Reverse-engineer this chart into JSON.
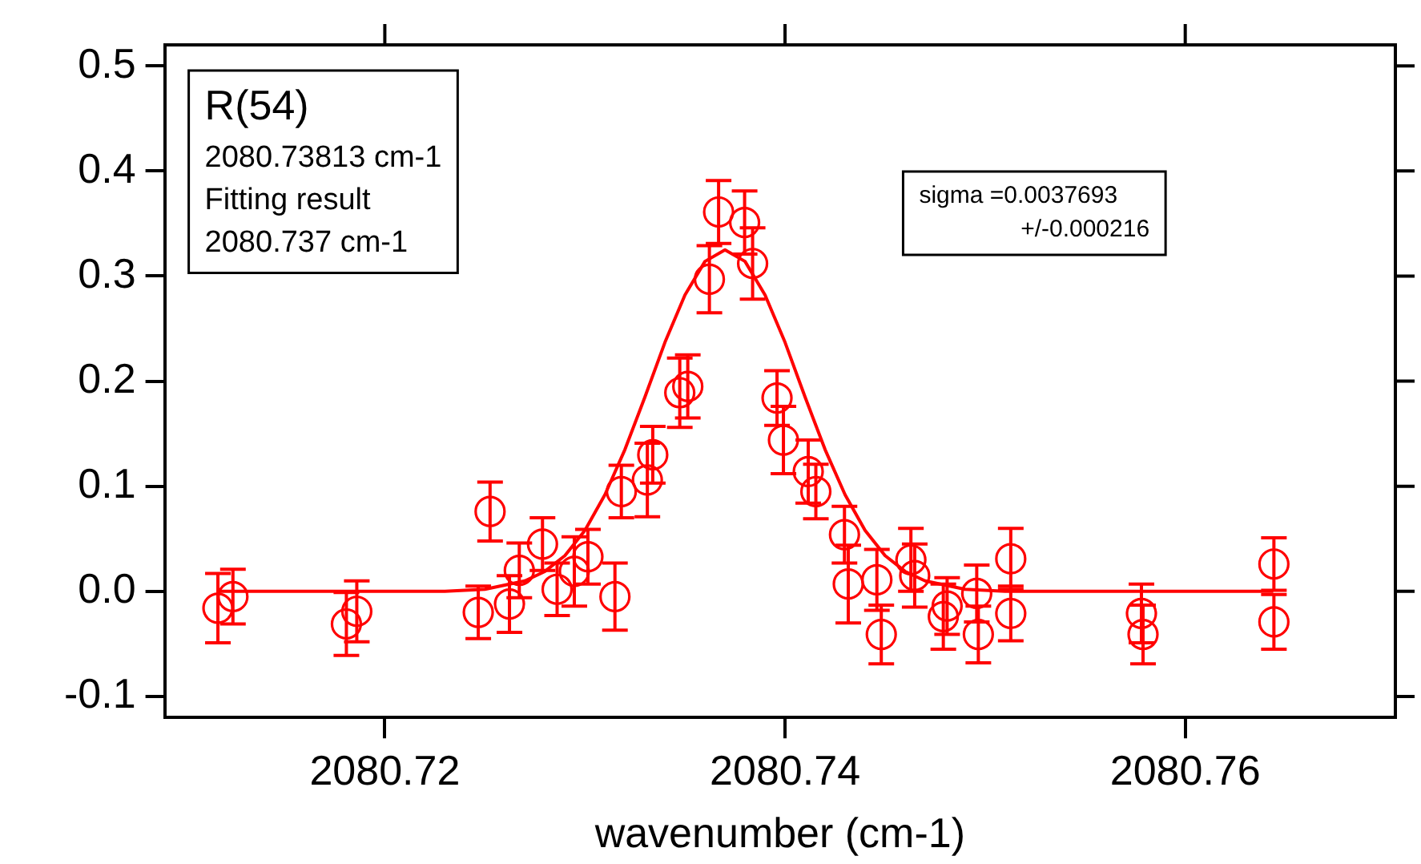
{
  "chart_data": {
    "type": "scatter",
    "xlabel": "wavenumber (cm-1)",
    "xlim": [
      2080.709,
      2080.7705
    ],
    "xticks": [
      2080.72,
      2080.74,
      2080.76
    ],
    "ylim": [
      -0.12,
      0.52
    ],
    "yticks": [
      {
        "value": -0.1,
        "label": "-0.1"
      },
      {
        "value": 0,
        "label": "0.0"
      },
      0.1,
      0.2,
      0.3,
      0.4,
      0.5
    ],
    "grid": false,
    "legend": false,
    "marker": "circle",
    "annotations": [
      "R(54)\n2080.73813 cm-1\nFitting result\n2080.737 cm-1",
      "sigma =0.0037693\n+/-0.000216"
    ],
    "series": [
      {
        "color": "#ff0000",
        "x": [
          2080.71166,
          2080.71241,
          2080.71808,
          2080.7186,
          2080.72467,
          2080.72526,
          2080.72623,
          2080.72672,
          2080.72788,
          2080.72861,
          2080.72947,
          2080.73015,
          2080.7315,
          2080.73182,
          2080.73312,
          2080.73339,
          2080.73474,
          2080.73514,
          2080.73622,
          2080.73668,
          2080.73798,
          2080.73838,
          2080.7396,
          2080.73992,
          2080.74116,
          2080.74154,
          2080.74297,
          2080.74316,
          2080.74459,
          2080.74481,
          2080.74629,
          2080.74648,
          2080.74791,
          2080.7481,
          2080.74958,
          2080.74966,
          2080.75128,
          2080.75128,
          2080.75781,
          2080.75789,
          2080.76443,
          2080.76443
        ],
        "values": [
          -0.016,
          -0.005,
          -0.031,
          -0.019,
          -0.02,
          0.076,
          -0.012,
          0.02,
          0.045,
          0.002,
          0.019,
          0.033,
          -0.005,
          0.095,
          0.106,
          0.13,
          0.189,
          0.195,
          0.297,
          0.361,
          0.351,
          0.312,
          0.184,
          0.144,
          0.114,
          0.095,
          0.054,
          0.007,
          0.011,
          -0.041,
          0.03,
          0.015,
          -0.024,
          -0.014,
          -0.002,
          -0.041,
          0.031,
          -0.021,
          -0.021,
          -0.041,
          0.026,
          -0.029
        ],
        "errors": [
          0.033,
          0.026,
          0.03,
          0.029,
          0.025,
          0.028,
          0.027,
          0.026,
          0.025,
          0.025,
          0.033,
          0.026,
          0.032,
          0.025,
          0.035,
          0.027,
          0.033,
          0.03,
          0.032,
          0.03,
          0.03,
          0.034,
          0.026,
          0.032,
          0.03,
          0.026,
          0.027,
          0.037,
          0.029,
          0.028,
          0.03,
          0.03,
          0.031,
          0.027,
          0.027,
          0.027,
          0.029,
          0.026,
          0.028,
          0.028,
          0.025,
          0.026
        ]
      },
      {
        "type": "line",
        "color": "#ff0000",
        "marker": "none",
        "line_style": "solid",
        "x": [
          2080.7117,
          2080.723,
          2080.725,
          2080.727,
          2080.728,
          2080.729,
          2080.73,
          2080.731,
          2080.732,
          2080.733,
          2080.734,
          2080.735,
          2080.736,
          2080.737,
          2080.738,
          2080.739,
          2080.74,
          2080.741,
          2080.742,
          2080.743,
          2080.744,
          2080.745,
          2080.746,
          2080.747,
          2080.749,
          2080.751,
          2080.7644
        ],
        "values": [
          0,
          0,
          0.002,
          0.01,
          0.019,
          0.034,
          0.058,
          0.092,
          0.135,
          0.185,
          0.237,
          0.282,
          0.314,
          0.325,
          0.314,
          0.282,
          0.237,
          0.185,
          0.135,
          0.092,
          0.058,
          0.034,
          0.019,
          0.01,
          0.002,
          0,
          0
        ]
      }
    ]
  }
}
